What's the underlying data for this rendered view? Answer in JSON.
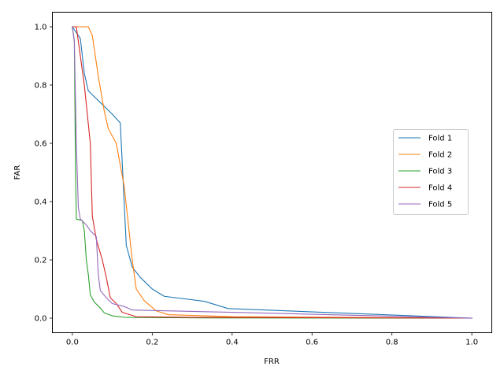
{
  "chart_data": {
    "type": "line",
    "xlabel": "FRR",
    "ylabel": "FAR",
    "xlim": [
      -0.05,
      1.05
    ],
    "ylim": [
      -0.05,
      1.05
    ],
    "xticks": [
      "0.0",
      "0.2",
      "0.4",
      "0.6",
      "0.8",
      "1.0"
    ],
    "yticks": [
      "0.0",
      "0.2",
      "0.4",
      "0.6",
      "0.8",
      "1.0"
    ],
    "grid": false,
    "legend_position": "center-right",
    "series": [
      {
        "name": "Fold 1",
        "color": "#1f77b4",
        "x": [
          0.0,
          0.02,
          0.03,
          0.04,
          0.07,
          0.1,
          0.12,
          0.135,
          0.15,
          0.17,
          0.2,
          0.23,
          0.33,
          0.39,
          1.0
        ],
        "y": [
          1.0,
          0.96,
          0.84,
          0.78,
          0.74,
          0.7,
          0.67,
          0.25,
          0.175,
          0.14,
          0.1,
          0.075,
          0.058,
          0.033,
          0.0
        ]
      },
      {
        "name": "Fold 2",
        "color": "#ff7f0e",
        "x": [
          0.0,
          0.04,
          0.05,
          0.065,
          0.08,
          0.09,
          0.11,
          0.13,
          0.15,
          0.16,
          0.18,
          0.21,
          0.24,
          0.4,
          1.0
        ],
        "y": [
          1.0,
          1.0,
          0.97,
          0.83,
          0.71,
          0.65,
          0.6,
          0.45,
          0.2,
          0.1,
          0.06,
          0.025,
          0.012,
          0.005,
          0.0
        ]
      },
      {
        "name": "Fold 3",
        "color": "#2ca02c",
        "x": [
          0.0,
          0.005,
          0.008,
          0.01,
          0.025,
          0.03,
          0.035,
          0.04,
          0.045,
          0.055,
          0.07,
          0.08,
          0.1,
          0.13,
          0.16,
          0.3,
          1.0
        ],
        "y": [
          1.0,
          0.95,
          0.5,
          0.34,
          0.335,
          0.3,
          0.2,
          0.15,
          0.08,
          0.055,
          0.035,
          0.018,
          0.008,
          0.003,
          0.002,
          0.001,
          0.0
        ]
      },
      {
        "name": "Fold 4",
        "color": "#d62728",
        "x": [
          0.0,
          0.01,
          0.02,
          0.03,
          0.045,
          0.05,
          0.06,
          0.075,
          0.085,
          0.095,
          0.11,
          0.125,
          0.16,
          0.3,
          1.0
        ],
        "y": [
          1.0,
          1.0,
          0.9,
          0.8,
          0.6,
          0.35,
          0.27,
          0.2,
          0.14,
          0.07,
          0.05,
          0.02,
          0.005,
          0.003,
          0.0
        ]
      },
      {
        "name": "Fold 5",
        "color": "#9467bd",
        "x": [
          0.0,
          0.005,
          0.01,
          0.015,
          0.02,
          0.035,
          0.045,
          0.06,
          0.065,
          0.07,
          0.085,
          0.1,
          0.13,
          0.15,
          0.4,
          1.0
        ],
        "y": [
          1.0,
          0.95,
          0.6,
          0.38,
          0.34,
          0.32,
          0.3,
          0.28,
          0.15,
          0.095,
          0.07,
          0.05,
          0.04,
          0.028,
          0.02,
          0.0
        ]
      }
    ]
  }
}
